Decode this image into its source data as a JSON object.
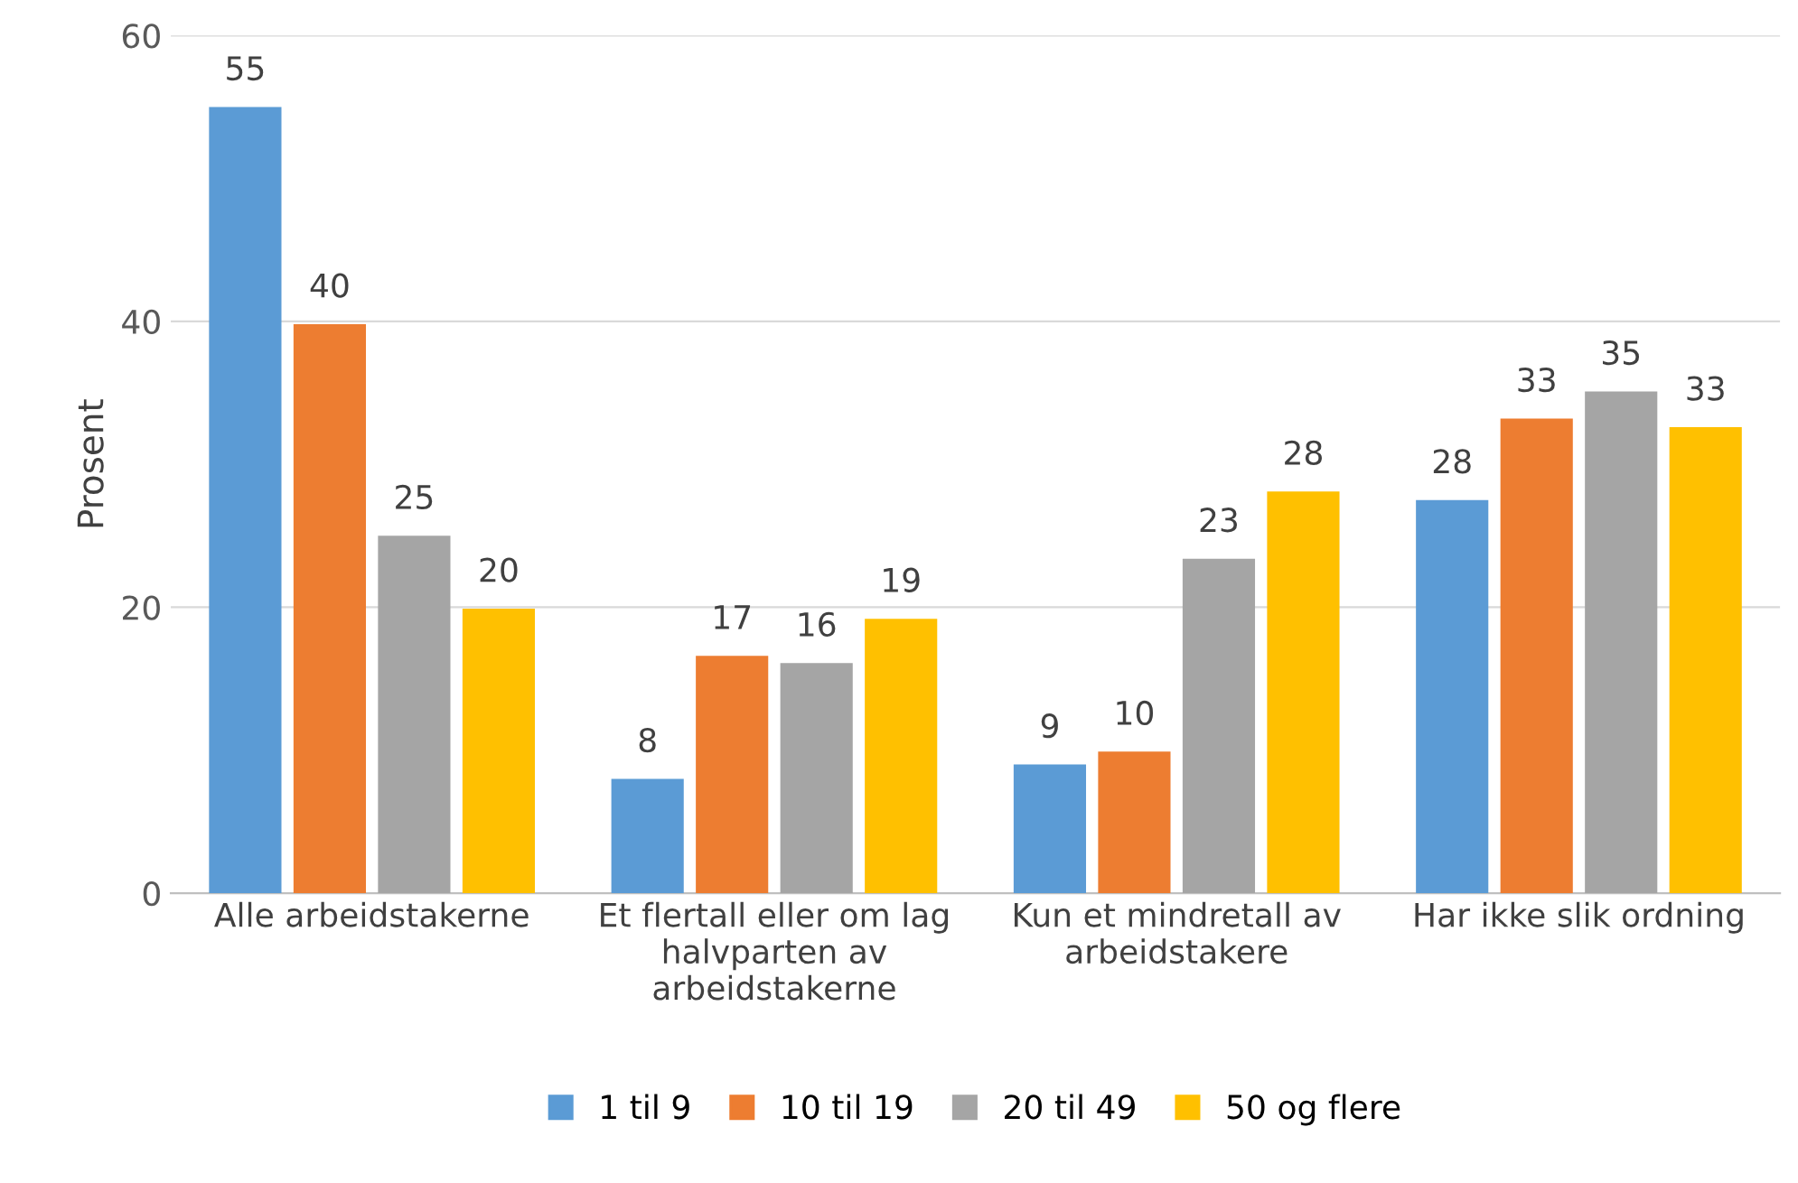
{
  "chart_data": {
    "type": "bar",
    "ylabel": "Prosent",
    "categories": [
      "Alle arbeidstakerne",
      "Et flertall eller om lag\nhalvparten av\narbeidstakerne",
      "Kun et mindretall av\narbeidstakere",
      "Har ikke slik ordning"
    ],
    "series": [
      {
        "name": "1 til 9",
        "color": "#5b9bd5",
        "values": [
          55,
          8,
          9,
          27.5
        ],
        "value_labels": [
          "55",
          "8",
          "9",
          "28"
        ]
      },
      {
        "name": "10 til 19",
        "color": "#ed7d31",
        "values": [
          39.8,
          16.6,
          9.9,
          33.2
        ],
        "value_labels": [
          "40",
          "17",
          "10",
          "33"
        ]
      },
      {
        "name": "20 til 49",
        "color": "#a5a5a5",
        "values": [
          25,
          16.1,
          23.4,
          35.1
        ],
        "value_labels": [
          "25",
          "16",
          "23",
          "35"
        ]
      },
      {
        "name": "50 og flere",
        "color": "#ffc000",
        "values": [
          19.9,
          19.2,
          28.1,
          32.6
        ],
        "value_labels": [
          "20",
          "19",
          "28",
          "33"
        ]
      }
    ],
    "ylim": [
      0,
      60
    ],
    "yticks": [
      0,
      20,
      40,
      60
    ],
    "grid": "y",
    "legend": "bottom"
  }
}
